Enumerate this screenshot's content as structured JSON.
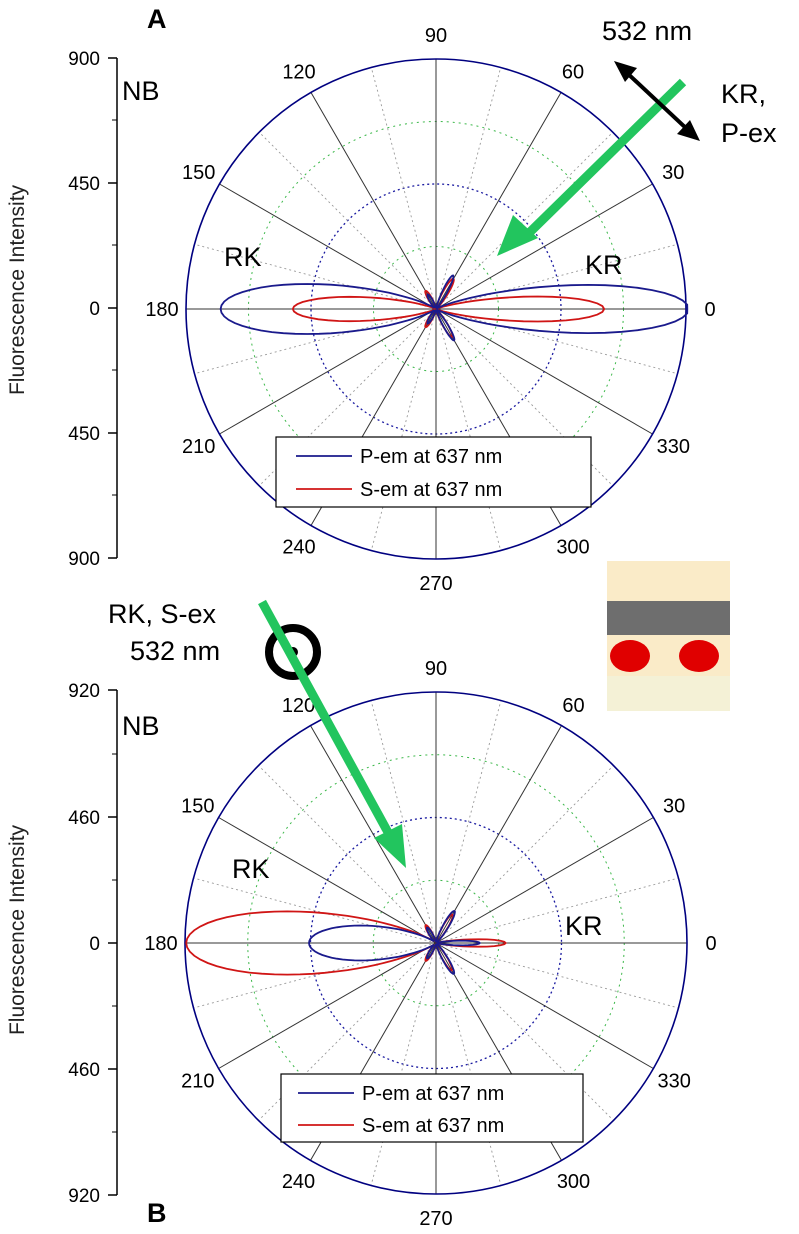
{
  "colors": {
    "p_em": "#1a1a8c",
    "s_em": "#d01515",
    "arrow": "#22c55e",
    "axis": "#000080"
  },
  "chart_data": [
    {
      "type": "polar",
      "panel": "A",
      "label": "NB",
      "ylabel": "Fluorescence Intensity",
      "y_ticks": [
        "900",
        "450",
        "0",
        "450",
        "900"
      ],
      "rmax": 900,
      "angle_ticks": [
        0,
        30,
        60,
        90,
        120,
        150,
        180,
        210,
        240,
        270,
        300,
        330
      ],
      "annotations": [
        "RK",
        "KR"
      ],
      "excitation": {
        "line1": "532 nm",
        "line2": "KR,",
        "line3": "P-ex",
        "direction_deg": 37
      },
      "legend": [
        "P-em at 637 nm",
        "S-em at 637 nm"
      ],
      "series": [
        {
          "name": "P-em at 637 nm",
          "color": "#1a1a8c",
          "lobes": [
            [
              0,
              905,
              9
            ],
            [
              180,
              770,
              11
            ],
            [
              63,
              130,
              6
            ],
            [
              300,
              125,
              6
            ],
            [
              120,
              55,
              8
            ],
            [
              240,
              55,
              8
            ]
          ]
        },
        {
          "name": "S-em at 637 nm",
          "color": "#d01515",
          "lobes": [
            [
              0,
              600,
              7
            ],
            [
              180,
              510,
              8
            ],
            [
              60,
              120,
              7
            ],
            [
              300,
              110,
              7
            ],
            [
              120,
              70,
              8
            ],
            [
              240,
              70,
              8
            ]
          ]
        }
      ]
    },
    {
      "type": "polar",
      "panel": "B",
      "label": "NB",
      "ylabel": "Fluorescence Intensity",
      "y_ticks": [
        "920",
        "460",
        "0",
        "460",
        "920"
      ],
      "rmax": 920,
      "angle_ticks": [
        0,
        30,
        60,
        90,
        120,
        150,
        180,
        210,
        240,
        270,
        300,
        330
      ],
      "annotations": [
        "RK",
        "KR"
      ],
      "excitation": {
        "line1": "RK, S-ex",
        "line2": "532 nm",
        "direction_deg": 119
      },
      "legend": [
        "P-em at 637 nm",
        "S-em at 637 nm"
      ],
      "series": [
        {
          "name": "P-em at 637 nm",
          "color": "#1a1a8c",
          "lobes": [
            [
              180,
              460,
              13
            ],
            [
              0,
              155,
              5
            ],
            [
              60,
              130,
              7
            ],
            [
              300,
              125,
              7
            ],
            [
              120,
              60,
              8
            ],
            [
              240,
              60,
              8
            ]
          ]
        },
        {
          "name": "S-em at 637 nm",
          "color": "#d01515",
          "lobes": [
            [
              180,
              910,
              12
            ],
            [
              0,
              250,
              5
            ],
            [
              60,
              115,
              7
            ],
            [
              300,
              110,
              7
            ],
            [
              120,
              70,
              8
            ],
            [
              240,
              70,
              8
            ]
          ]
        }
      ]
    }
  ]
}
